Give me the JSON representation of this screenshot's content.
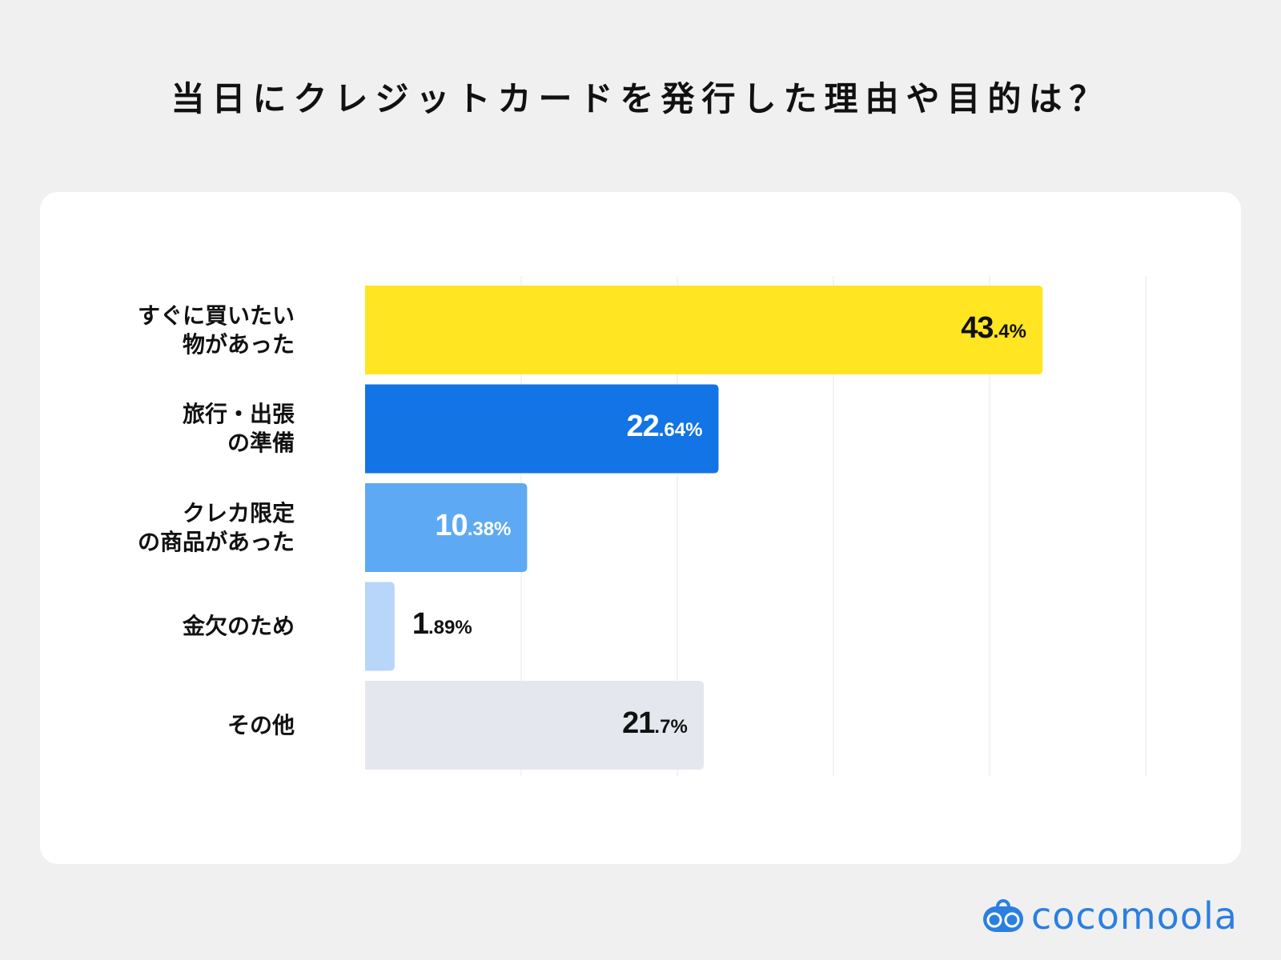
{
  "title": "当日にクレジットカードを発行した理由や目的は？",
  "chart_data": {
    "type": "bar",
    "orientation": "horizontal",
    "title": "当日にクレジットカードを発行した理由や目的は？",
    "categories": [
      "すぐに買いたい\n物があった",
      "旅行・出張\nの準備",
      "クレカ限定\nの商品があった",
      "金欠のため",
      "その他"
    ],
    "values": [
      43.4,
      22.64,
      10.38,
      1.89,
      21.7
    ],
    "value_labels": [
      "43.4%",
      "22.64%",
      "10.38%",
      "1.89%",
      "21.7%"
    ],
    "bar_colors": [
      "#ffe522",
      "#1274e5",
      "#5ea9f3",
      "#b7d6f9",
      "#e4e8ee"
    ],
    "label_colors": [
      "#111111",
      "#ffffff",
      "#ffffff",
      "#111111",
      "#111111"
    ],
    "xlim": [
      0,
      50
    ],
    "grid": true,
    "gridlines": [
      10,
      20,
      30,
      40,
      50
    ],
    "xlabel": "",
    "ylabel": ""
  },
  "logo": {
    "text": "cocomoola",
    "color": "#2b7fe0"
  }
}
